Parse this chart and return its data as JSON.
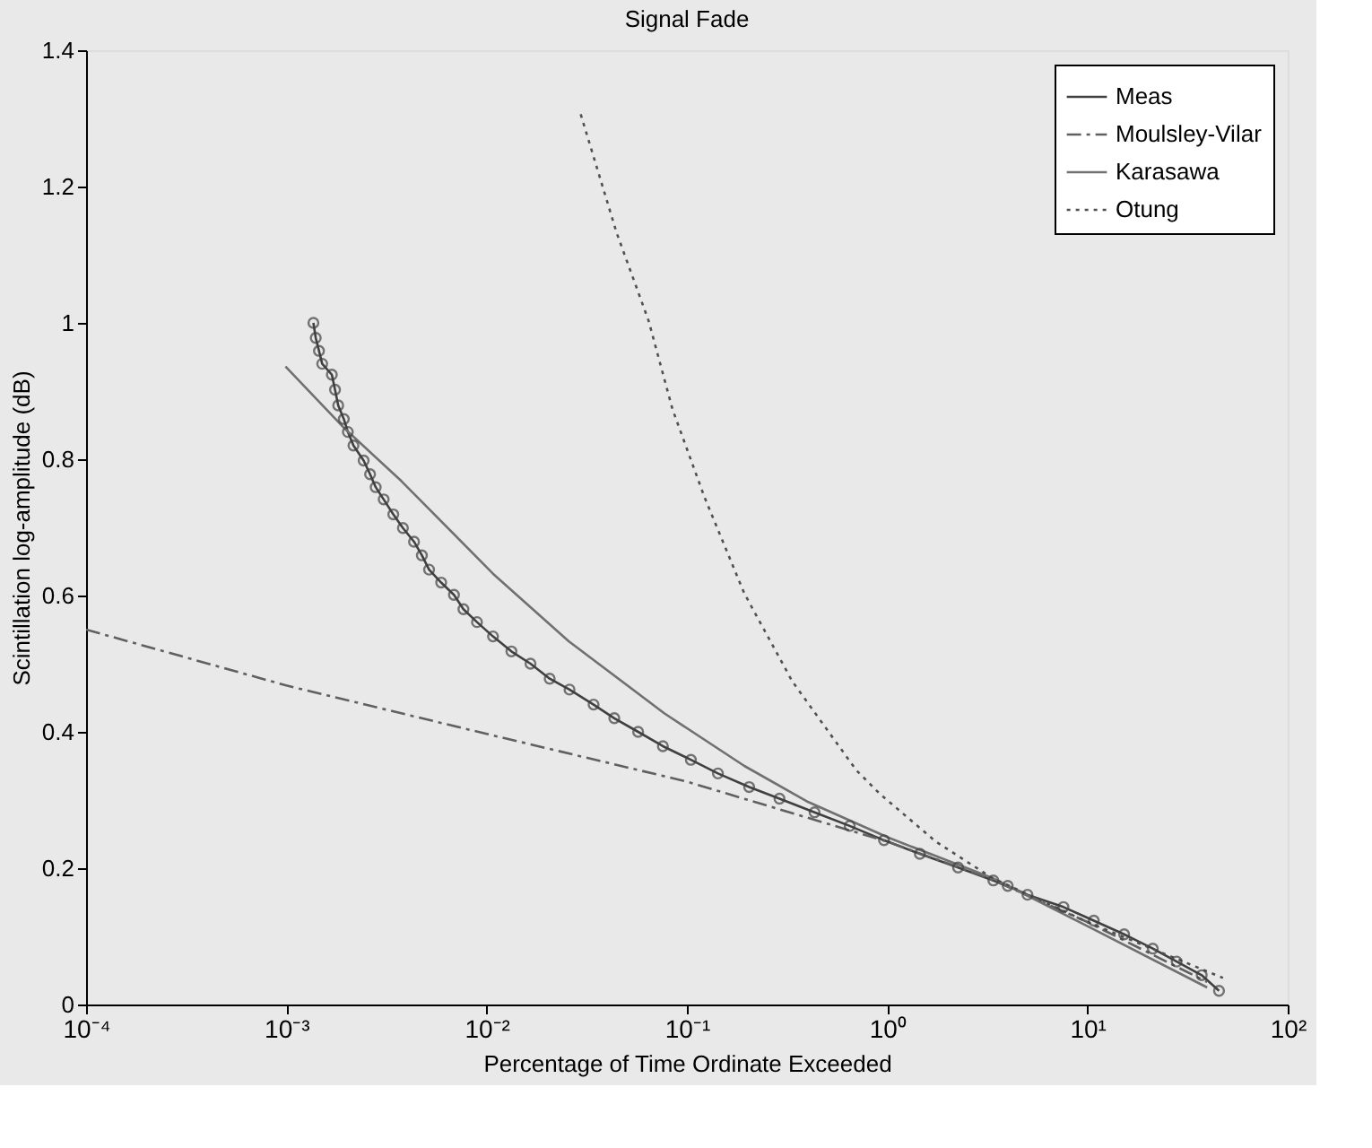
{
  "chart_data": {
    "type": "line",
    "title": "Signal Fade",
    "xlabel": "Percentage of Time Ordinate Exceeded",
    "ylabel": "Scintillation log-amplitude (dB)",
    "log": "x",
    "grid": false,
    "legend": "top right",
    "xlim": [
      0.0001,
      100
    ],
    "ylim": [
      0,
      1.4
    ],
    "xticks": [
      {
        "value": 0.0001,
        "label": "10⁻⁴"
      },
      {
        "value": 0.001,
        "label": "10⁻³"
      },
      {
        "value": 0.01,
        "label": "10⁻²"
      },
      {
        "value": 0.1,
        "label": "10⁻¹"
      },
      {
        "value": 1,
        "label": "10⁰"
      },
      {
        "value": 10,
        "label": "10¹"
      },
      {
        "value": 100,
        "label": "10²"
      }
    ],
    "yticks": [
      0,
      0.2,
      0.4,
      0.6,
      0.8,
      1,
      1.2,
      1.4
    ],
    "series": [
      {
        "name": "Meas",
        "color": "#404040",
        "line_style": "solid",
        "marker": "circle",
        "x": [
          0.001365,
          0.001402,
          0.001455,
          0.00151,
          0.001687,
          0.00175,
          0.001815,
          0.001936,
          0.002028,
          0.002163,
          0.002432,
          0.002618,
          0.002793,
          0.003062,
          0.00342,
          0.00382,
          0.00434,
          0.00475,
          0.00516,
          0.00593,
          0.00687,
          0.00766,
          0.00895,
          0.01076,
          0.0133,
          0.01656,
          0.02065,
          0.02594,
          0.0342,
          0.0434,
          0.0571,
          0.0759,
          0.1047,
          0.1429,
          0.2046,
          0.29,
          0.434,
          0.65,
          0.964,
          1.456,
          2.26,
          3.39,
          4.0,
          5.02,
          7.59,
          10.76,
          15.25,
          21.2,
          27.9,
          37.2,
          45.4
        ],
        "values": [
          1.0,
          0.978,
          0.959,
          0.94,
          0.924,
          0.902,
          0.879,
          0.859,
          0.84,
          0.82,
          0.798,
          0.778,
          0.759,
          0.741,
          0.719,
          0.699,
          0.679,
          0.659,
          0.638,
          0.619,
          0.601,
          0.58,
          0.561,
          0.54,
          0.518,
          0.5,
          0.478,
          0.462,
          0.44,
          0.42,
          0.4,
          0.379,
          0.359,
          0.339,
          0.319,
          0.302,
          0.282,
          0.262,
          0.241,
          0.221,
          0.201,
          0.182,
          0.174,
          0.161,
          0.143,
          0.123,
          0.103,
          0.082,
          0.063,
          0.043,
          0.02
        ]
      },
      {
        "name": "Moulsley-Vilar",
        "color": "#606060",
        "line_style": "dashdot",
        "marker": "none",
        "x": [
          0.0001,
          0.001,
          0.01,
          0.1,
          1,
          3.16,
          10,
          39.6
        ],
        "values": [
          0.55,
          0.468,
          0.397,
          0.327,
          0.239,
          0.186,
          0.121,
          0.033
        ]
      },
      {
        "name": "Karasawa",
        "color": "#707070",
        "line_style": "solid",
        "marker": "none",
        "x": [
          0.00099,
          0.00197,
          0.00375,
          0.01076,
          0.0257,
          0.0773,
          0.1936,
          0.404,
          1.01,
          3.33,
          10,
          39.6
        ],
        "values": [
          0.936,
          0.844,
          0.768,
          0.632,
          0.533,
          0.427,
          0.35,
          0.297,
          0.245,
          0.186,
          0.115,
          0.025
        ]
      },
      {
        "name": "Otung",
        "color": "#505050",
        "line_style": "dotted",
        "marker": "none",
        "x": [
          0.0295,
          0.0446,
          0.0644,
          0.0848,
          0.1225,
          0.1936,
          0.336,
          0.7,
          0.92,
          1.75,
          3.33,
          10,
          47.5
        ],
        "values": [
          1.306,
          1.132,
          1.003,
          0.873,
          0.744,
          0.603,
          0.474,
          0.344,
          0.309,
          0.239,
          0.186,
          0.121,
          0.039
        ]
      }
    ]
  }
}
